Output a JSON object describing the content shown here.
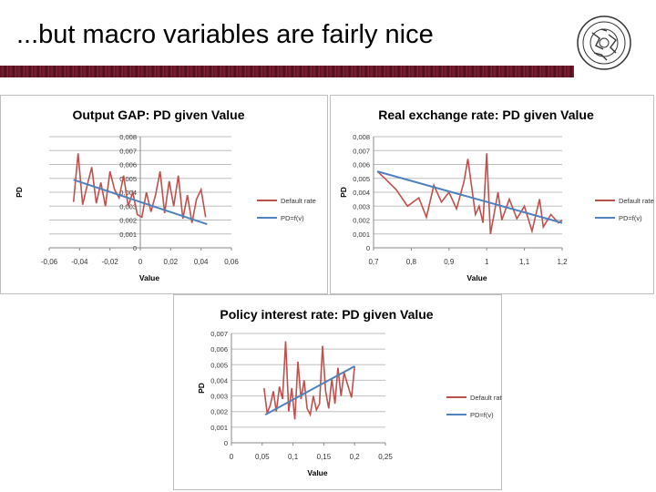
{
  "slide": {
    "title": "...but macro variables are fairly nice"
  },
  "chart_data": [
    {
      "type": "line",
      "title": "Output GAP: PD given Value",
      "xlabel": "Value",
      "ylabel": "PD",
      "xlim": [
        -0.06,
        0.06
      ],
      "ylim": [
        0,
        0.008
      ],
      "x_ticks": [
        "-0,06",
        "-0,04",
        "-0,02",
        "0",
        "0,02",
        "0,04",
        "0,06"
      ],
      "y_ticks": [
        "0",
        "0,001",
        "0,002",
        "0,003",
        "0,004",
        "0,005",
        "0,006",
        "0,007",
        "0,008"
      ],
      "series": [
        {
          "name": "Default rate",
          "color": "#c0504d",
          "x": [
            -0.044,
            -0.041,
            -0.038,
            -0.035,
            -0.032,
            -0.029,
            -0.026,
            -0.023,
            -0.02,
            -0.017,
            -0.014,
            -0.011,
            -0.008,
            -0.005,
            -0.002,
            0.001,
            0.004,
            0.007,
            0.01,
            0.013,
            0.016,
            0.019,
            0.022,
            0.025,
            0.028,
            0.031,
            0.034,
            0.037,
            0.04,
            0.043
          ],
          "y": [
            0.0033,
            0.0068,
            0.0031,
            0.0045,
            0.0058,
            0.0032,
            0.0047,
            0.003,
            0.0055,
            0.0042,
            0.0036,
            0.0052,
            0.003,
            0.004,
            0.0024,
            0.0022,
            0.004,
            0.0026,
            0.0038,
            0.0055,
            0.0025,
            0.0048,
            0.003,
            0.0052,
            0.0021,
            0.0038,
            0.0018,
            0.0035,
            0.0042,
            0.0022
          ]
        },
        {
          "name": "PD=f(v)",
          "color": "#4f81bd",
          "x": [
            -0.044,
            0.044
          ],
          "y": [
            0.0049,
            0.0017
          ]
        }
      ]
    },
    {
      "type": "line",
      "title": "Real exchange rate: PD given Value",
      "xlabel": "Value",
      "ylabel": "PD",
      "xlim": [
        0.7,
        1.2
      ],
      "ylim": [
        0,
        0.008
      ],
      "x_ticks": [
        "0,7",
        "0,8",
        "0,9",
        "1",
        "1,1",
        "1,2"
      ],
      "y_ticks": [
        "0",
        "0,001",
        "0,002",
        "0,003",
        "0,004",
        "0,005",
        "0,006",
        "0,007",
        "0,008"
      ],
      "series": [
        {
          "name": "Default rate",
          "color": "#c0504d",
          "x": [
            0.71,
            0.73,
            0.76,
            0.79,
            0.82,
            0.84,
            0.86,
            0.88,
            0.9,
            0.92,
            0.94,
            0.95,
            0.97,
            0.98,
            0.99,
            1.0,
            1.01,
            1.02,
            1.03,
            1.04,
            1.06,
            1.08,
            1.1,
            1.12,
            1.14,
            1.15,
            1.17,
            1.19,
            1.2
          ],
          "y": [
            0.0055,
            0.005,
            0.0042,
            0.003,
            0.0036,
            0.0022,
            0.0045,
            0.0033,
            0.004,
            0.0028,
            0.0048,
            0.0064,
            0.0024,
            0.003,
            0.0018,
            0.0068,
            0.001,
            0.0025,
            0.004,
            0.002,
            0.0035,
            0.0021,
            0.003,
            0.0012,
            0.0035,
            0.0015,
            0.0024,
            0.0018,
            0.002
          ]
        },
        {
          "name": "PD=f(v)",
          "color": "#4f81bd",
          "x": [
            0.71,
            1.2
          ],
          "y": [
            0.0055,
            0.0018
          ]
        }
      ]
    },
    {
      "type": "line",
      "title": "Policy interest rate: PD given Value",
      "xlabel": "Value",
      "ylabel": "PD",
      "xlim": [
        0,
        0.25
      ],
      "ylim": [
        0,
        0.007
      ],
      "x_ticks": [
        "0",
        "0,05",
        "0,1",
        "0,15",
        "0,2",
        "0,25"
      ],
      "y_ticks": [
        "0",
        "0,001",
        "0,002",
        "0,003",
        "0,004",
        "0,005",
        "0,006",
        "0,007"
      ],
      "series": [
        {
          "name": "Default rate",
          "color": "#c0504d",
          "x": [
            0.053,
            0.058,
            0.063,
            0.068,
            0.073,
            0.078,
            0.083,
            0.088,
            0.093,
            0.098,
            0.103,
            0.108,
            0.113,
            0.118,
            0.123,
            0.128,
            0.133,
            0.138,
            0.143,
            0.148,
            0.153,
            0.158,
            0.163,
            0.168,
            0.173,
            0.178,
            0.183,
            0.188,
            0.195,
            0.2
          ],
          "y": [
            0.0035,
            0.0019,
            0.0024,
            0.0033,
            0.002,
            0.0036,
            0.0028,
            0.0065,
            0.002,
            0.0035,
            0.0015,
            0.0052,
            0.0028,
            0.004,
            0.0022,
            0.0018,
            0.003,
            0.0021,
            0.0025,
            0.0062,
            0.0033,
            0.0022,
            0.0041,
            0.0025,
            0.0048,
            0.003,
            0.0045,
            0.0038,
            0.0029,
            0.0049
          ]
        },
        {
          "name": "PD=f(v)",
          "color": "#4f81bd",
          "x": [
            0.055,
            0.2
          ],
          "y": [
            0.0018,
            0.0049
          ]
        }
      ]
    }
  ]
}
